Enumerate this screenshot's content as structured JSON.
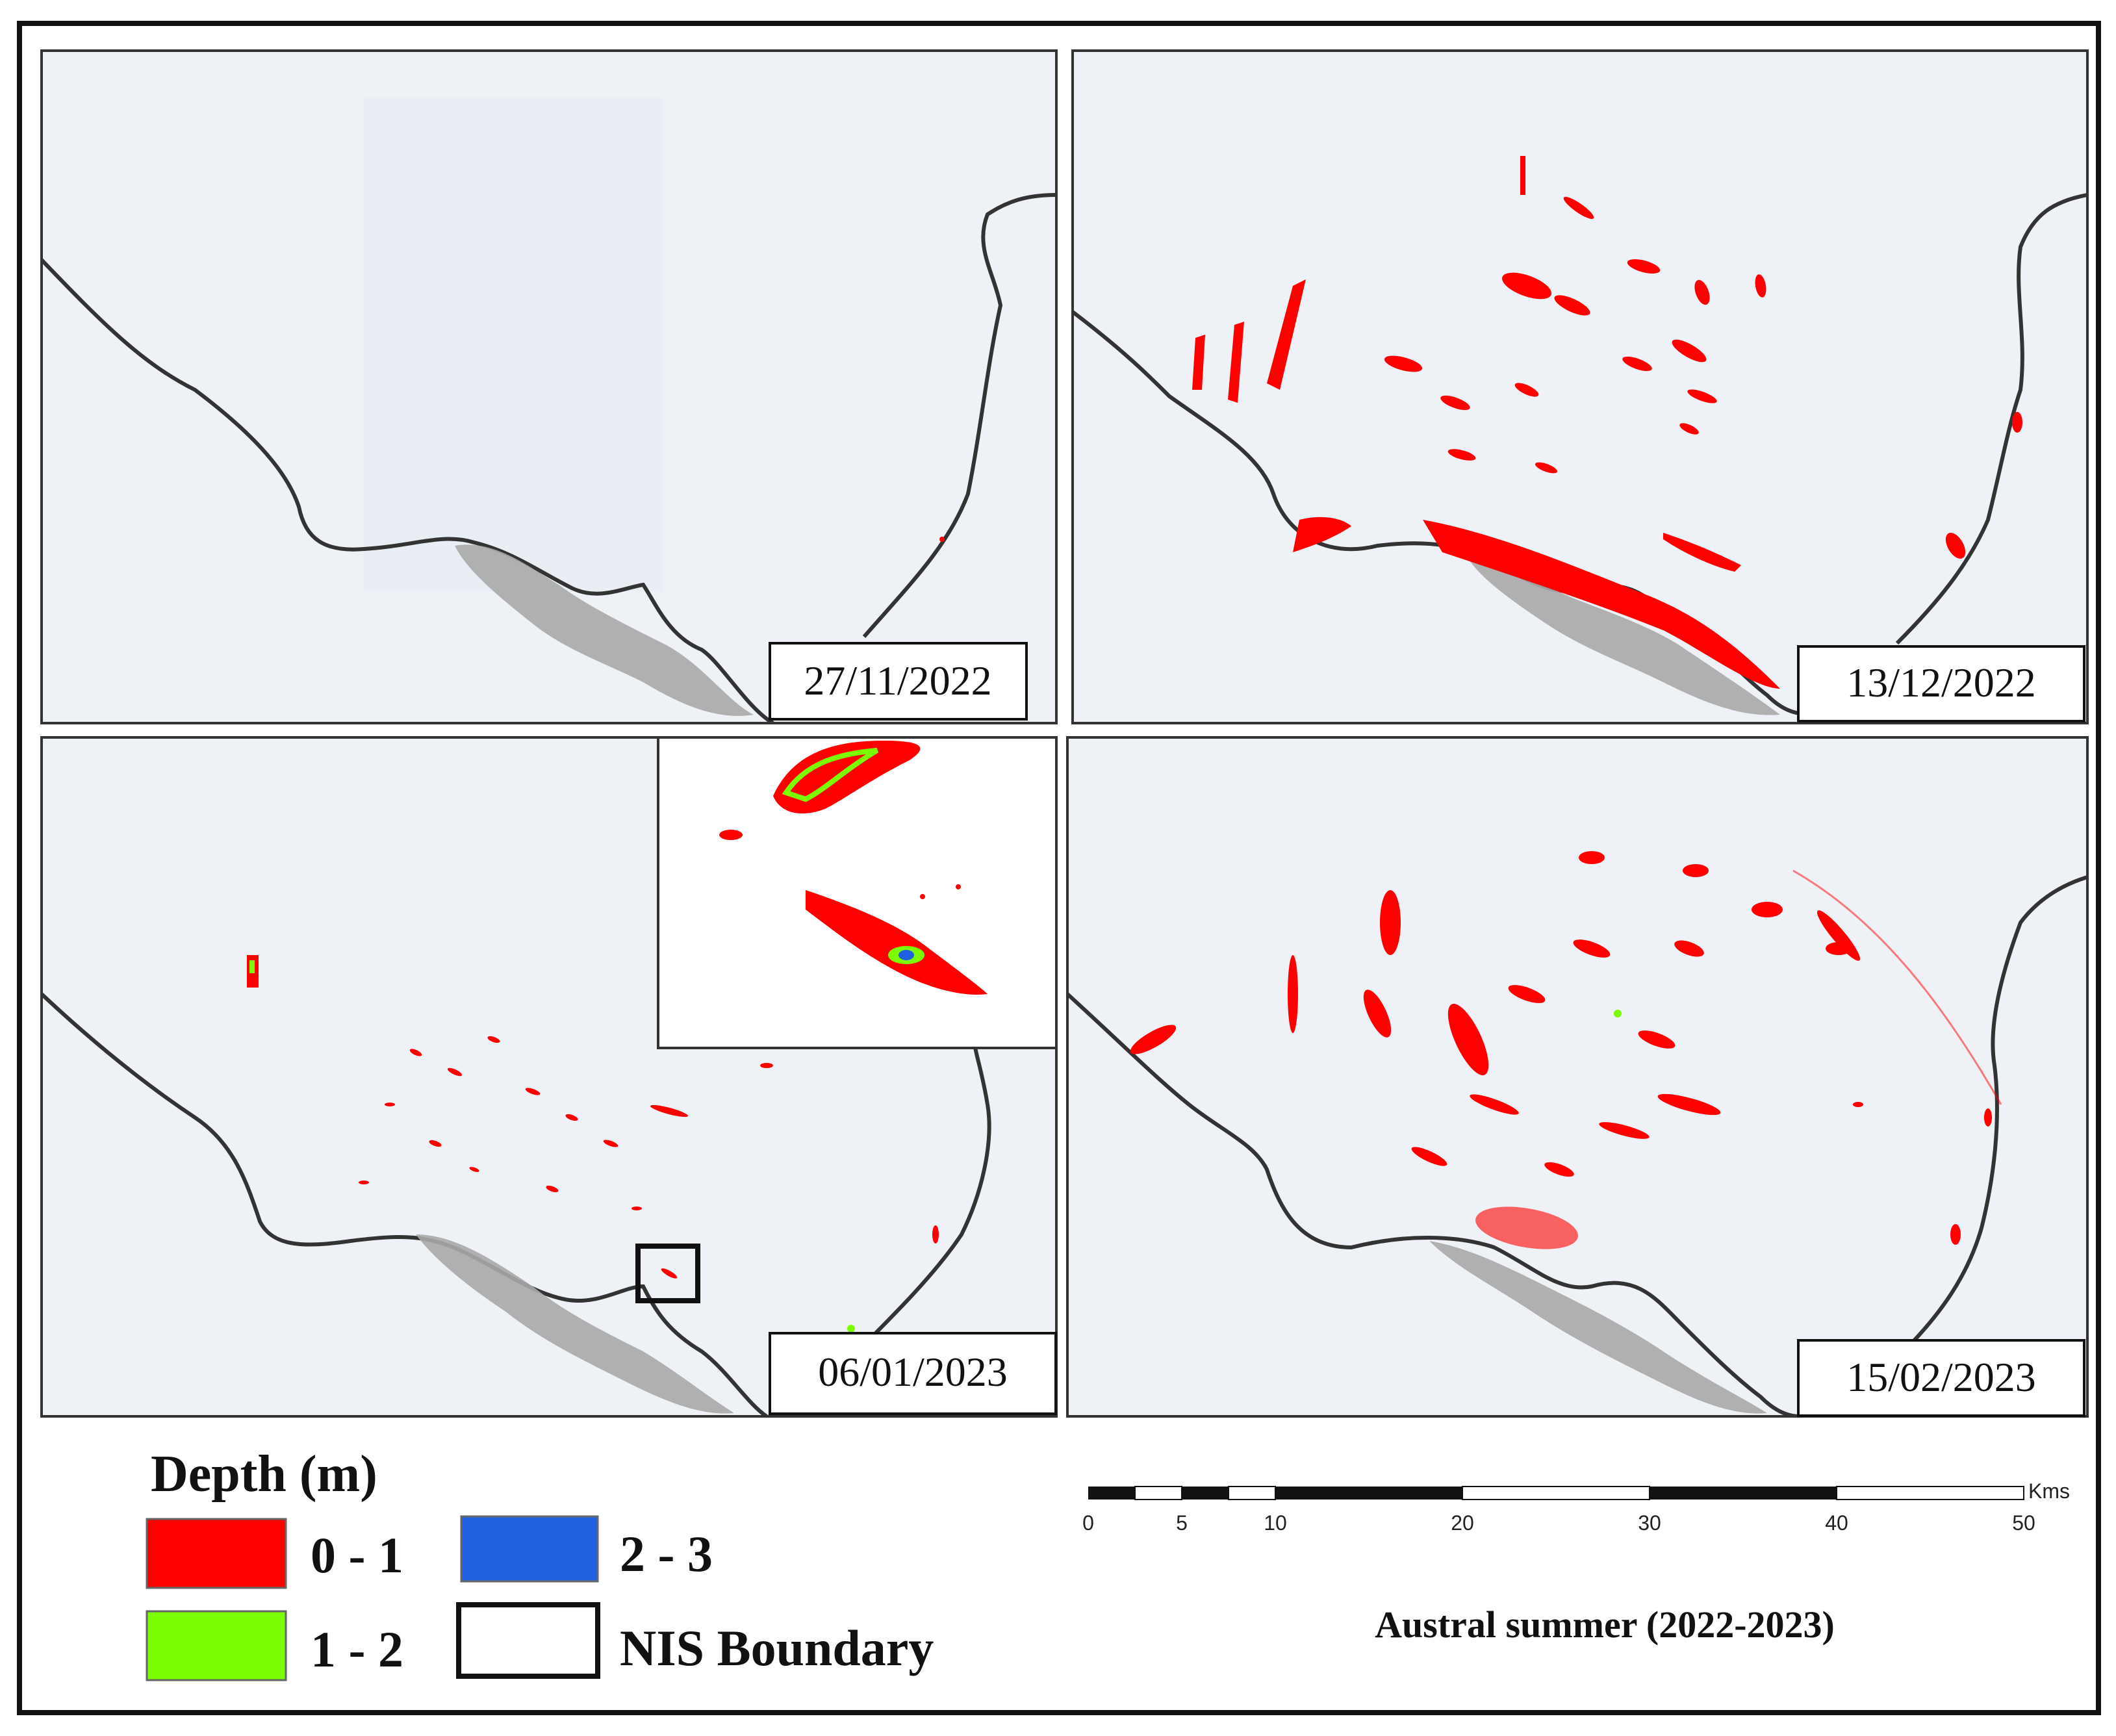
{
  "panels": [
    {
      "id": "p1",
      "date": "27/11/2022"
    },
    {
      "id": "p2",
      "date": "13/12/2022"
    },
    {
      "id": "p3",
      "date": "06/01/2023"
    },
    {
      "id": "p4",
      "date": "15/02/2023"
    }
  ],
  "legend": {
    "title": "Depth (m)",
    "items": [
      {
        "label": "0 - 1",
        "color": "#ff0000"
      },
      {
        "label": "1 - 2",
        "color": "#7cfc00"
      },
      {
        "label": "2 - 3",
        "color": "#1f5fe0"
      },
      {
        "label": "NIS Boundary",
        "color": "#ffffff"
      }
    ]
  },
  "scalebar": {
    "unit": "Kms",
    "ticks": [
      "0",
      "5",
      "10",
      "20",
      "30",
      "40",
      "50"
    ]
  },
  "caption": "Austral summer (2022-2023)",
  "colors": {
    "background": "#eef2f6",
    "boundary": "#333333",
    "rock": "#a9a9a9",
    "pond_shallow": "#ff0000",
    "pond_mid": "#7cfc00",
    "pond_deep": "#1f5fe0"
  }
}
